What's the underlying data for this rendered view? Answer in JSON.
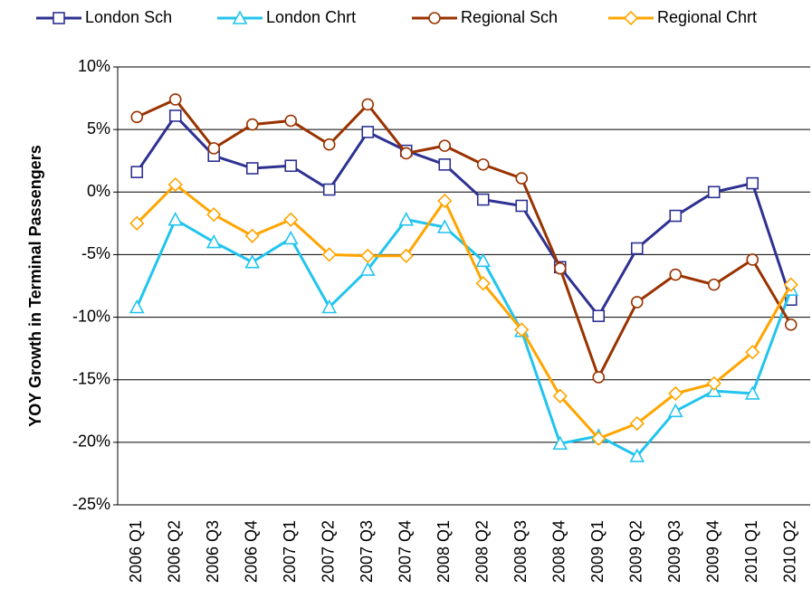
{
  "chart_data": {
    "type": "line",
    "ylabel": "YOY Growth in Terminal Passengers",
    "categories": [
      "2006 Q1",
      "2006 Q2",
      "2006 Q3",
      "2006 Q4",
      "2007 Q1",
      "2007 Q2",
      "2007 Q3",
      "2007 Q4",
      "2008 Q1",
      "2008 Q2",
      "2008 Q3",
      "2008 Q4",
      "2009 Q1",
      "2009 Q2",
      "2009 Q3",
      "2009 Q4",
      "2010 Q1",
      "2010 Q2"
    ],
    "series": [
      {
        "name": "London Sch",
        "color": "#2e3192",
        "marker": "square",
        "values": [
          1.6,
          6.1,
          2.9,
          1.9,
          2.1,
          0.2,
          4.8,
          3.3,
          2.2,
          -0.6,
          -1.1,
          -6.0,
          -9.9,
          -4.5,
          -1.9,
          0,
          0.7,
          -8.6
        ]
      },
      {
        "name": "London Chrt",
        "color": "#22c4ee",
        "marker": "triangle",
        "values": [
          -9.2,
          -2.2,
          -4.0,
          -5.6,
          -3.7,
          -9.2,
          -6.2,
          -2.2,
          -2.8,
          -5.5,
          -11.1,
          -20.1,
          -19.5,
          -21.1,
          -17.5,
          -15.9,
          -16.1,
          -7.8
        ]
      },
      {
        "name": "Regional Sch",
        "color": "#993300",
        "marker": "circle",
        "values": [
          6.0,
          7.4,
          3.5,
          5.4,
          5.7,
          3.8,
          7.0,
          3.1,
          3.7,
          2.2,
          1.1,
          -6.1,
          -14.8,
          -8.8,
          -6.6,
          -7.4,
          -5.4,
          -10.6
        ]
      },
      {
        "name": "Regional Chrt",
        "color": "#ffa500",
        "marker": "diamond",
        "values": [
          -2.5,
          0.6,
          -1.8,
          -3.5,
          -2.2,
          -5.0,
          -5.1,
          -5.1,
          -0.7,
          -7.3,
          -11.0,
          -16.3,
          -19.7,
          -18.5,
          -16.1,
          -15.3,
          -12.8,
          -7.4
        ]
      }
    ],
    "ylim": [
      -25,
      10
    ],
    "yticks": [
      {
        "value": -25,
        "label": "-25%"
      },
      {
        "value": -20,
        "label": "-20%"
      },
      {
        "value": -15,
        "label": "-15%"
      },
      {
        "value": -10,
        "label": "-10%"
      },
      {
        "value": -5,
        "label": "-5%"
      },
      {
        "value": 0,
        "label": "0%"
      },
      {
        "value": 5,
        "label": "5%"
      },
      {
        "value": 10,
        "label": "10%"
      }
    ],
    "grid": true,
    "legend": "top"
  }
}
